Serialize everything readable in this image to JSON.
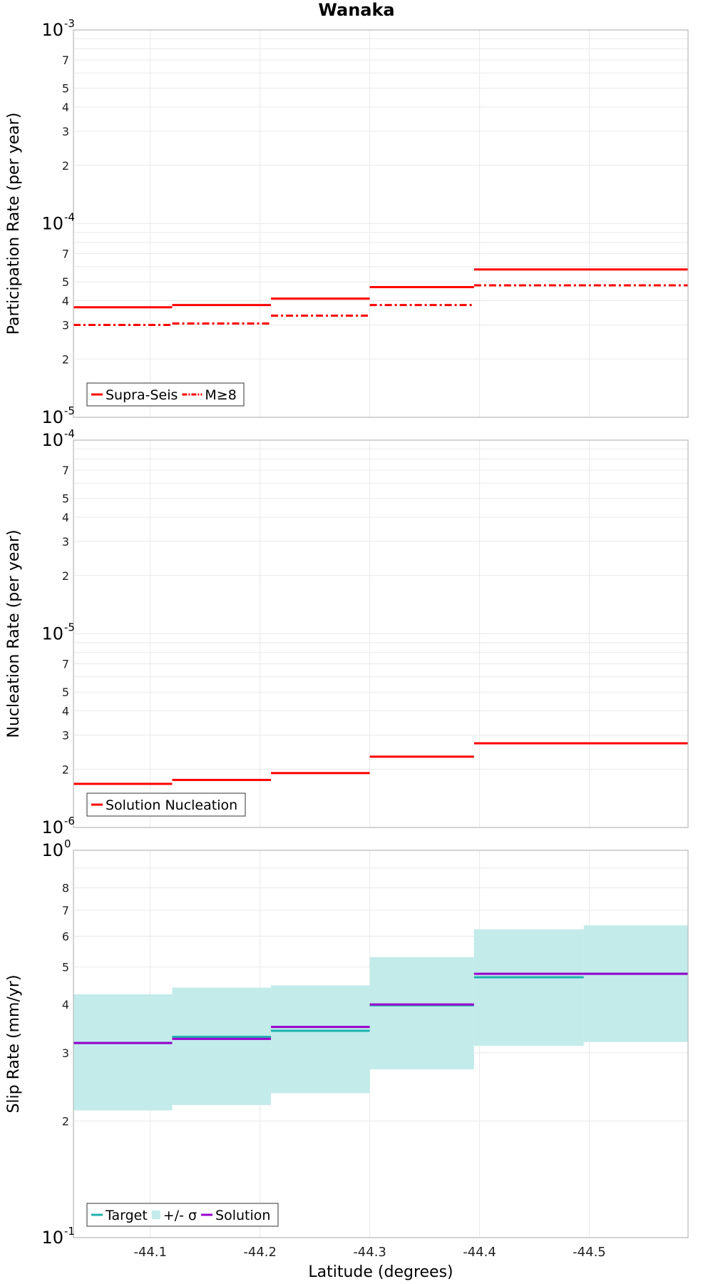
{
  "title": "Wanaka",
  "chart_data": [
    {
      "type": "line",
      "name": "participation",
      "ylabel": "Participation Rate (per year)",
      "yscale": "log",
      "ylim": [
        1e-05,
        0.001
      ],
      "decade_labels": [
        {
          "value": 1e-05,
          "base": "10",
          "exp": "-5"
        },
        {
          "value": 0.0001,
          "base": "10",
          "exp": "-4"
        },
        {
          "value": 0.001,
          "base": "10",
          "exp": "-3"
        }
      ],
      "minor_tick_labels": [
        "2",
        "3",
        "4",
        "5",
        "7"
      ],
      "xlim": [
        -44.03,
        -44.59
      ],
      "grid": true,
      "legend_position": "bottom-left",
      "series": [
        {
          "name": "Supra-Seis",
          "color": "#ff0000",
          "style": "solid",
          "steps": [
            {
              "x0": -44.03,
              "x1": -44.12,
              "y": 3.7e-05
            },
            {
              "x0": -44.12,
              "x1": -44.21,
              "y": 3.8e-05
            },
            {
              "x0": -44.21,
              "x1": -44.3,
              "y": 4.1e-05
            },
            {
              "x0": -44.3,
              "x1": -44.395,
              "y": 4.7e-05
            },
            {
              "x0": -44.395,
              "x1": -44.59,
              "y": 5.8e-05
            }
          ]
        },
        {
          "name": "M≥8",
          "color": "#ff0000",
          "style": "dashdot",
          "steps": [
            {
              "x0": -44.03,
              "x1": -44.12,
              "y": 3e-05
            },
            {
              "x0": -44.12,
              "x1": -44.21,
              "y": 3.05e-05
            },
            {
              "x0": -44.21,
              "x1": -44.3,
              "y": 3.35e-05
            },
            {
              "x0": -44.3,
              "x1": -44.395,
              "y": 3.8e-05
            },
            {
              "x0": -44.395,
              "x1": -44.59,
              "y": 4.8e-05
            }
          ]
        }
      ]
    },
    {
      "type": "line",
      "name": "nucleation",
      "ylabel": "Nucleation Rate (per year)",
      "yscale": "log",
      "ylim": [
        1e-06,
        0.0001
      ],
      "decade_labels": [
        {
          "value": 1e-06,
          "base": "10",
          "exp": "-6"
        },
        {
          "value": 1e-05,
          "base": "10",
          "exp": "-5"
        },
        {
          "value": 0.0001,
          "base": "10",
          "exp": "-4"
        }
      ],
      "minor_tick_labels": [
        "2",
        "3",
        "4",
        "5",
        "7"
      ],
      "xlim": [
        -44.03,
        -44.59
      ],
      "grid": true,
      "legend_position": "bottom-left",
      "series": [
        {
          "name": "Solution Nucleation",
          "color": "#ff0000",
          "style": "solid",
          "steps": [
            {
              "x0": -44.03,
              "x1": -44.12,
              "y": 1.68e-06
            },
            {
              "x0": -44.12,
              "x1": -44.21,
              "y": 1.76e-06
            },
            {
              "x0": -44.21,
              "x1": -44.3,
              "y": 1.91e-06
            },
            {
              "x0": -44.3,
              "x1": -44.395,
              "y": 2.32e-06
            },
            {
              "x0": -44.395,
              "x1": -44.59,
              "y": 2.72e-06
            }
          ]
        }
      ]
    },
    {
      "type": "line",
      "name": "slip",
      "ylabel": "Slip Rate (mm/yr)",
      "xlabel": "Latitude (degrees)",
      "yscale": "log",
      "ylim": [
        0.1,
        1
      ],
      "decade_labels": [
        {
          "value": 0.1,
          "base": "10",
          "exp": "-1"
        },
        {
          "value": 1,
          "base": "10",
          "exp": "0"
        }
      ],
      "minor_tick_labels": [
        "2",
        "3",
        "4",
        "5",
        "6",
        "7",
        "8"
      ],
      "xlim": [
        -44.03,
        -44.59
      ],
      "x_ticks": [
        "-44.1",
        "-44.2",
        "-44.3",
        "-44.4",
        "-44.5"
      ],
      "grid": true,
      "legend_position": "bottom-left",
      "series": [
        {
          "name": "Target",
          "color": "#20b0b0",
          "style": "solid",
          "steps": [
            {
              "x0": -44.03,
              "x1": -44.12,
              "y": 0.318
            },
            {
              "x0": -44.12,
              "x1": -44.21,
              "y": 0.33
            },
            {
              "x0": -44.21,
              "x1": -44.3,
              "y": 0.342
            },
            {
              "x0": -44.3,
              "x1": -44.395,
              "y": 0.398
            },
            {
              "x0": -44.395,
              "x1": -44.495,
              "y": 0.47
            },
            {
              "x0": -44.495,
              "x1": -44.59,
              "y": 0.48
            }
          ]
        },
        {
          "name": "+/- σ",
          "color": "#c2ebea",
          "style": "band",
          "steps": [
            {
              "x0": -44.03,
              "x1": -44.12,
              "lo": 0.213,
              "hi": 0.425
            },
            {
              "x0": -44.12,
              "x1": -44.21,
              "lo": 0.22,
              "hi": 0.442
            },
            {
              "x0": -44.21,
              "x1": -44.3,
              "lo": 0.236,
              "hi": 0.448
            },
            {
              "x0": -44.3,
              "x1": -44.395,
              "lo": 0.272,
              "hi": 0.53
            },
            {
              "x0": -44.395,
              "x1": -44.495,
              "lo": 0.313,
              "hi": 0.625
            },
            {
              "x0": -44.495,
              "x1": -44.59,
              "lo": 0.32,
              "hi": 0.64
            }
          ]
        },
        {
          "name": "Solution",
          "color": "#9900cc",
          "style": "solid",
          "steps": [
            {
              "x0": -44.03,
              "x1": -44.12,
              "y": 0.318
            },
            {
              "x0": -44.12,
              "x1": -44.21,
              "y": 0.326
            },
            {
              "x0": -44.21,
              "x1": -44.3,
              "y": 0.35
            },
            {
              "x0": -44.3,
              "x1": -44.395,
              "y": 0.4
            },
            {
              "x0": -44.395,
              "x1": -44.59,
              "y": 0.48
            }
          ]
        }
      ]
    }
  ]
}
